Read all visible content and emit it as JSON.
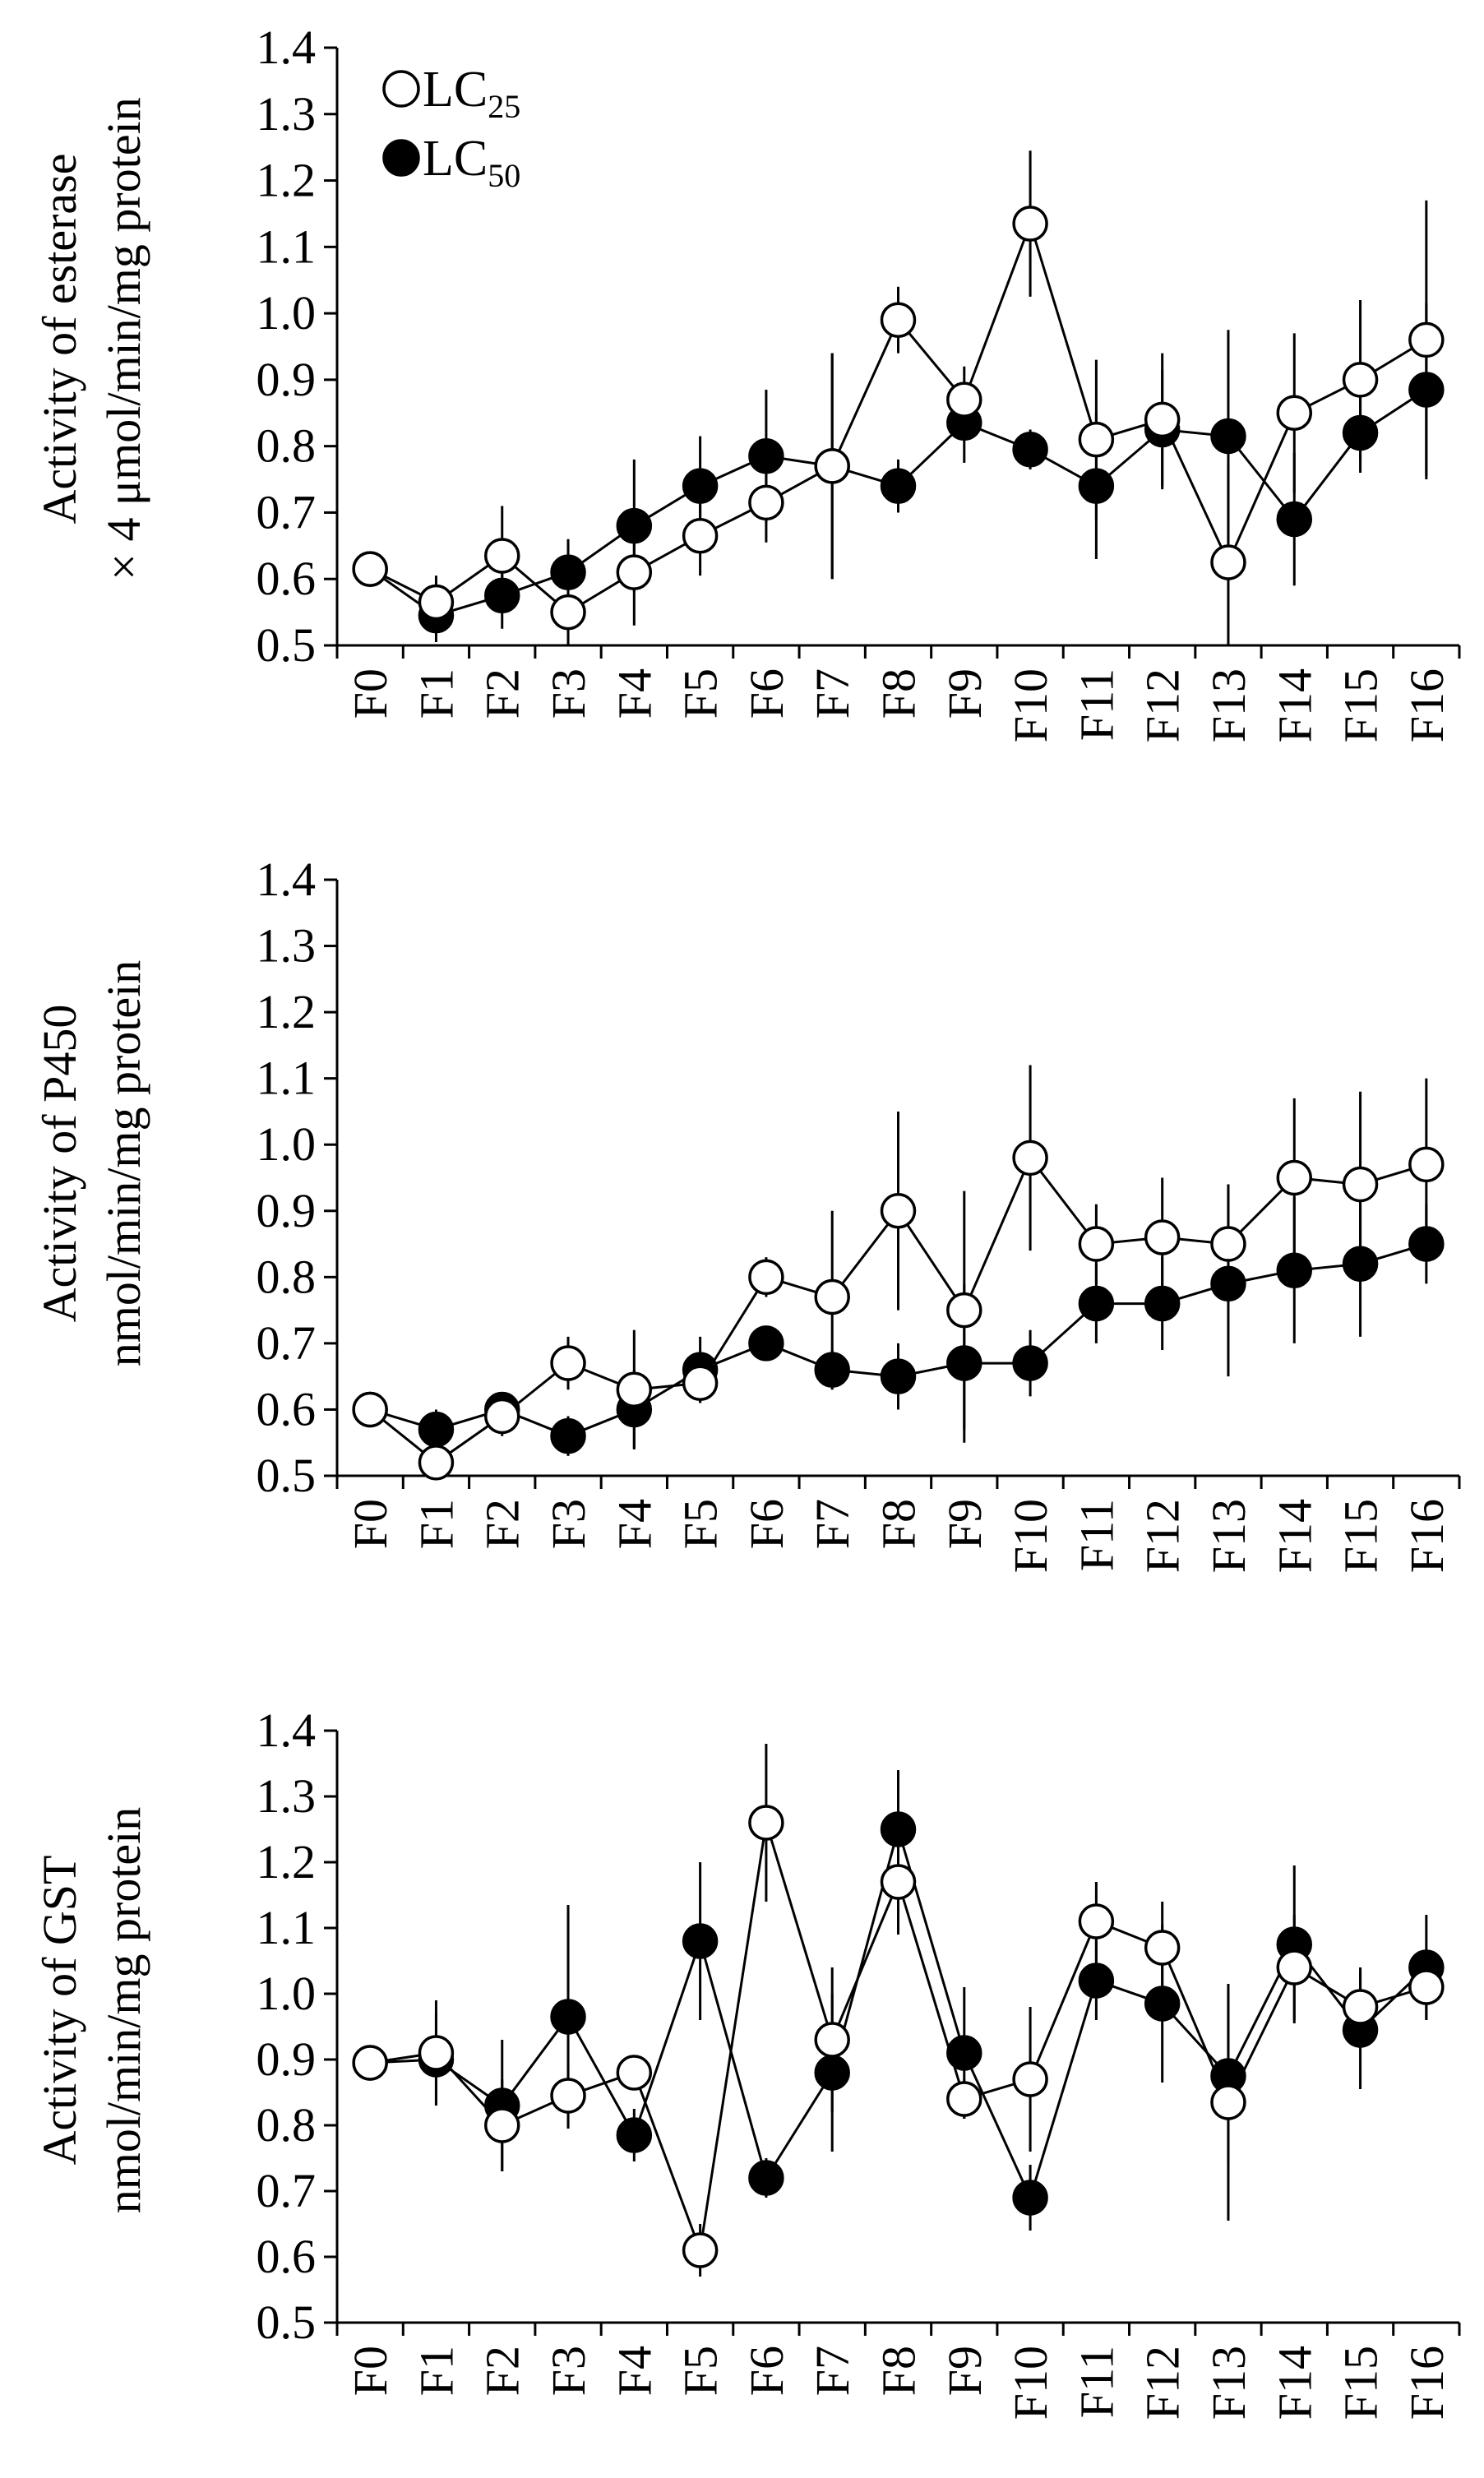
{
  "chart_data": [
    {
      "type": "line",
      "ylabel_lines": [
        "Activity of esterase",
        "× 4 μmol/min/mg protein"
      ],
      "ylim": [
        0.5,
        1.4
      ],
      "yticks": [
        0.5,
        0.6,
        0.7,
        0.8,
        0.9,
        1.0,
        1.1,
        1.2,
        1.3,
        1.4
      ],
      "ytick_labels": [
        "0.5",
        "0.6",
        "0.7",
        "0.8",
        "0.9",
        "1.0",
        "1.1",
        "1.2",
        "1.3",
        "1.4"
      ],
      "categories": [
        "F0",
        "F1",
        "F2",
        "F3",
        "F4",
        "F5",
        "F6",
        "F7",
        "F8",
        "F9",
        "F10",
        "F11",
        "F12",
        "F13",
        "F14",
        "F15",
        "F16"
      ],
      "series": [
        {
          "name": "LC25",
          "marker": "open",
          "values": [
            0.615,
            0.565,
            0.635,
            0.55,
            0.61,
            0.665,
            0.715,
            0.77,
            0.99,
            0.87,
            1.135,
            0.81,
            0.84,
            0.625,
            0.85,
            0.9,
            0.96
          ],
          "err": [
            0.02,
            0.04,
            0.075,
            0.05,
            0.08,
            0.06,
            0.06,
            0.17,
            0.05,
            0.05,
            0.11,
            0.12,
            0.1,
            0.15,
            0.12,
            0.12,
            0.21
          ]
        },
        {
          "name": "LC50",
          "marker": "filled",
          "values": [
            0.615,
            0.545,
            0.575,
            0.61,
            0.68,
            0.74,
            0.785,
            0.77,
            0.74,
            0.835,
            0.795,
            0.74,
            0.825,
            0.815,
            0.69,
            0.82,
            0.885
          ],
          "err": [
            0.02,
            0.04,
            0.05,
            0.05,
            0.1,
            0.075,
            0.1,
            0.17,
            0.04,
            0.06,
            0.03,
            0.11,
            0.09,
            0.16,
            0.1,
            0.06,
            0.13
          ]
        }
      ],
      "legend": {
        "position": "top-left",
        "entries": [
          {
            "base": "LC",
            "sub": "25",
            "marker": "open"
          },
          {
            "base": "LC",
            "sub": "50",
            "marker": "filled"
          }
        ]
      }
    },
    {
      "type": "line",
      "ylabel_lines": [
        "Activity of P450",
        "nmol/min/mg protein"
      ],
      "ylim": [
        0.5,
        1.4
      ],
      "yticks": [
        0.5,
        0.6,
        0.7,
        0.8,
        0.9,
        1.0,
        1.1,
        1.2,
        1.3,
        1.4
      ],
      "ytick_labels": [
        "0.5",
        "0.6",
        "0.7",
        "0.8",
        "0.9",
        "1.0",
        "1.1",
        "1.2",
        "1.3",
        "1.4"
      ],
      "categories": [
        "F0",
        "F1",
        "F2",
        "F3",
        "F4",
        "F5",
        "F6",
        "F7",
        "F8",
        "F9",
        "F10",
        "F11",
        "F12",
        "F13",
        "F14",
        "F15",
        "F16"
      ],
      "series": [
        {
          "name": "LC25",
          "marker": "open",
          "values": [
            0.6,
            0.52,
            0.59,
            0.67,
            0.63,
            0.64,
            0.8,
            0.77,
            0.9,
            0.75,
            0.98,
            0.85,
            0.86,
            0.85,
            0.95,
            0.94,
            0.97
          ],
          "err": [
            0.02,
            0.03,
            0.03,
            0.04,
            0.09,
            0.03,
            0.03,
            0.13,
            0.15,
            0.18,
            0.14,
            0.06,
            0.09,
            0.09,
            0.12,
            0.14,
            0.13
          ]
        },
        {
          "name": "LC50",
          "marker": "filled",
          "values": [
            0.6,
            0.57,
            0.6,
            0.56,
            0.6,
            0.66,
            0.7,
            0.66,
            0.65,
            0.67,
            0.67,
            0.76,
            0.76,
            0.79,
            0.81,
            0.82,
            0.85
          ],
          "err": [
            0.02,
            0.03,
            0.02,
            0.03,
            0.06,
            0.05,
            0.02,
            0.03,
            0.05,
            0.12,
            0.05,
            0.06,
            0.07,
            0.14,
            0.11,
            0.11,
            0.06
          ]
        }
      ]
    },
    {
      "type": "line",
      "ylabel_lines": [
        "Activity of GST",
        "nmol/min/mg protein"
      ],
      "ylim": [
        0.5,
        1.4
      ],
      "yticks": [
        0.5,
        0.6,
        0.7,
        0.8,
        0.9,
        1.0,
        1.1,
        1.2,
        1.3,
        1.4
      ],
      "ytick_labels": [
        "0.5",
        "0.6",
        "0.7",
        "0.8",
        "0.9",
        "1.0",
        "1.1",
        "1.2",
        "1.3",
        "1.4"
      ],
      "categories": [
        "F0",
        "F1",
        "F2",
        "F3",
        "F4",
        "F5",
        "F6",
        "F7",
        "F8",
        "F9",
        "F10",
        "F11",
        "F12",
        "F13",
        "F14",
        "F15",
        "F16"
      ],
      "series": [
        {
          "name": "LC25",
          "marker": "open",
          "values": [
            0.895,
            0.91,
            0.8,
            0.845,
            0.88,
            0.61,
            1.26,
            0.93,
            1.17,
            0.84,
            0.87,
            1.11,
            1.07,
            0.835,
            1.04,
            0.98,
            1.01
          ],
          "err": [
            0.02,
            0.08,
            0.07,
            0.05,
            0.02,
            0.04,
            0.12,
            0.11,
            0.08,
            0.03,
            0.11,
            0.06,
            0.07,
            0.18,
            0.08,
            0.06,
            0.05
          ]
        },
        {
          "name": "LC50",
          "marker": "filled",
          "values": [
            0.895,
            0.9,
            0.83,
            0.965,
            0.785,
            1.08,
            0.72,
            0.88,
            1.25,
            0.91,
            0.69,
            1.02,
            0.985,
            0.875,
            1.075,
            0.945,
            1.04
          ],
          "err": [
            0.02,
            0.07,
            0.1,
            0.17,
            0.04,
            0.12,
            0.03,
            0.12,
            0.09,
            0.1,
            0.05,
            0.06,
            0.12,
            0.13,
            0.12,
            0.09,
            0.08
          ]
        }
      ]
    }
  ]
}
